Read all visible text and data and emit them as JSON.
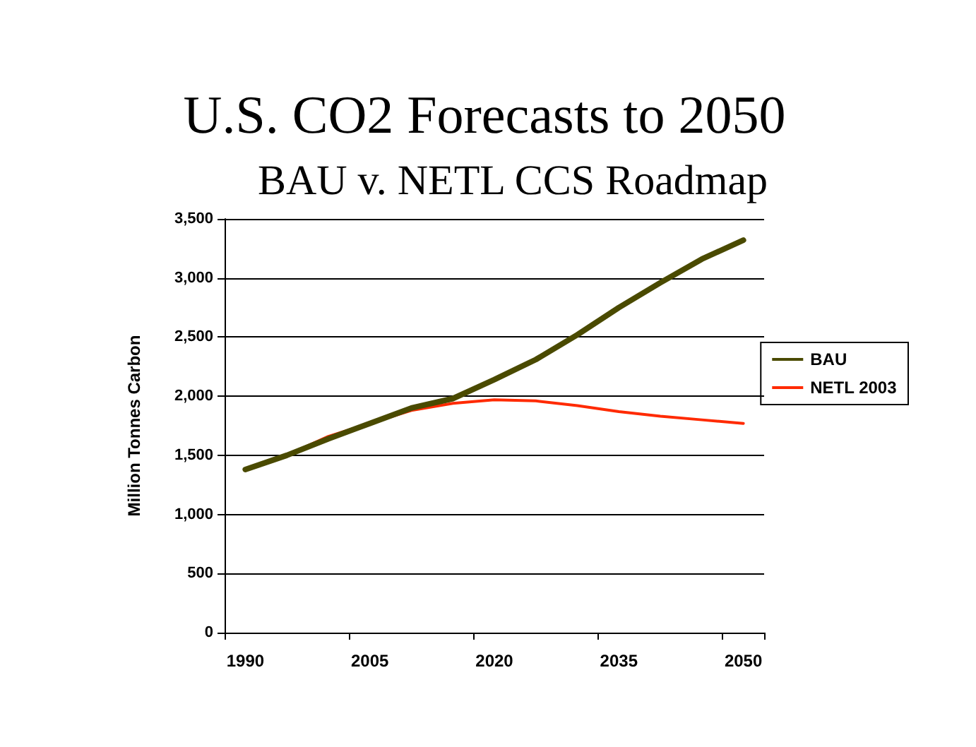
{
  "chart_data": {
    "type": "line",
    "title": "U.S. CO2 Forecasts to 2050",
    "subtitle": "BAU v. NETL CCS Roadmap",
    "ylabel": "Million Tonnes Carbon",
    "categories": [
      "1990",
      null,
      null,
      "2005",
      null,
      null,
      "2020",
      null,
      null,
      "2035",
      null,
      null,
      "2050"
    ],
    "series": [
      {
        "name": "BAU",
        "color": "#4a4a00",
        "values": [
          1380,
          1500,
          1640,
          1770,
          1900,
          1980,
          2140,
          2310,
          2520,
          2750,
          2960,
          3160,
          3320
        ]
      },
      {
        "name": "NETL 2003",
        "color": "#ff2a00",
        "values": [
          1380,
          1500,
          1660,
          1770,
          1880,
          1940,
          1970,
          1960,
          1920,
          1870,
          1830,
          1800,
          1770
        ]
      }
    ],
    "ylim": [
      0,
      3500
    ],
    "yticks": [
      0,
      500,
      {
        "value": 1000,
        "label": "1,000"
      },
      {
        "value": 1500,
        "label": "1,500"
      },
      {
        "value": 2000,
        "label": "2,000"
      },
      {
        "value": 2500,
        "label": "2,500"
      },
      {
        "value": 3000,
        "label": "3,000"
      },
      {
        "value": 3500,
        "label": "3,500"
      }
    ],
    "grid": "y",
    "legend": "right",
    "marker": "none",
    "line_style": "solid"
  }
}
